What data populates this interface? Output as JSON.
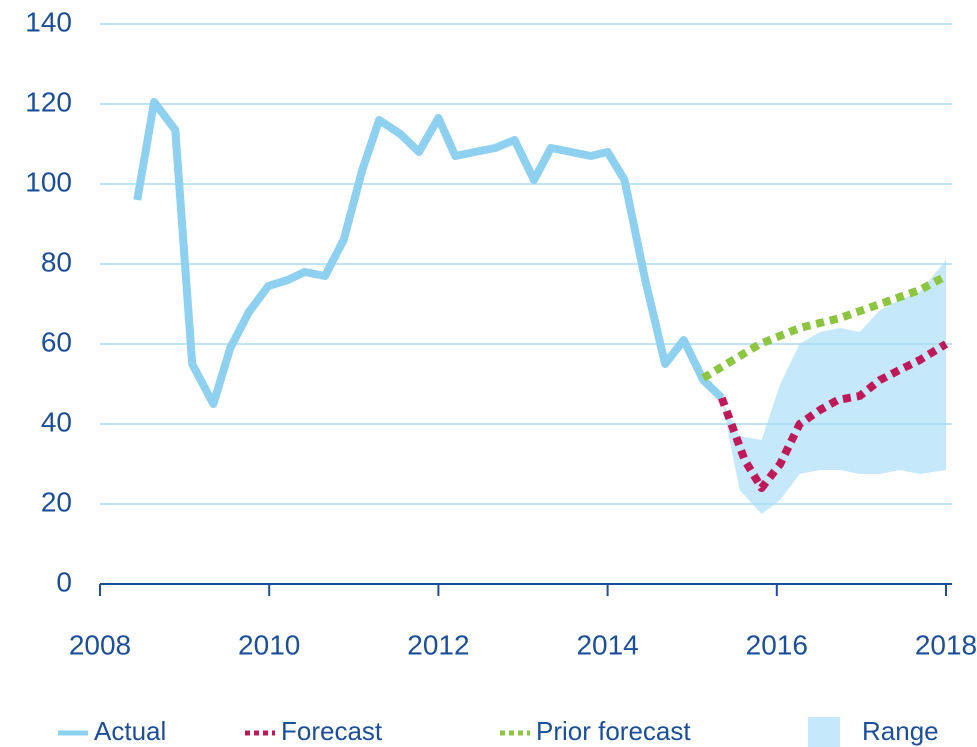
{
  "chart_data": {
    "type": "line",
    "xlim": [
      2008,
      2018
    ],
    "xticks": [
      2008,
      2010,
      2012,
      2014,
      2016,
      2018
    ],
    "ylim": [
      0,
      140
    ],
    "yticks": [
      0,
      20,
      40,
      60,
      80,
      100,
      120,
      140
    ],
    "grid": true,
    "legend": "bottom",
    "series": [
      {
        "name": "Actual",
        "color": "#8dd0f0",
        "style": "solid",
        "x": [
          2008.44,
          2008.64,
          2008.89,
          2009.09,
          2009.34,
          2009.54,
          2009.76,
          2009.99,
          2010.22,
          2010.42,
          2010.66,
          2010.88,
          2011.1,
          2011.3,
          2011.55,
          2011.77,
          2012.0,
          2012.2,
          2012.43,
          2012.67,
          2012.9,
          2013.13,
          2013.33,
          2013.57,
          2013.8,
          2014.0,
          2014.2,
          2014.45,
          2014.68,
          2014.9,
          2015.13,
          2015.35
        ],
        "values": [
          96,
          120.5,
          113.5,
          55,
          45,
          59,
          68,
          74.5,
          76,
          78,
          77,
          86,
          103.5,
          116,
          112.5,
          108,
          116.5,
          107,
          108,
          109,
          111,
          101,
          109,
          108,
          107,
          108,
          101,
          75.5,
          55,
          61,
          51,
          46.5
        ]
      },
      {
        "name": "Forecast",
        "color": "#c0195a",
        "style": "dotted",
        "x": [
          2015.35,
          2015.62,
          2015.82,
          2016.04,
          2016.27,
          2016.51,
          2016.72,
          2016.98,
          2017.22,
          2017.45,
          2017.69,
          2018.0
        ],
        "values": [
          46.5,
          31,
          24,
          30,
          40,
          43.5,
          46,
          47,
          51,
          53.5,
          56,
          60
        ]
      },
      {
        "name": "Prior forecast",
        "color": "#8cc63f",
        "style": "dotted",
        "x": [
          2015.13,
          2015.8,
          2016.27,
          2016.75,
          2017.22,
          2017.69,
          2018.0
        ],
        "values": [
          51.5,
          60,
          64,
          66.5,
          70,
          73.5,
          77
        ]
      },
      {
        "name": "Range",
        "color": "#c5e9fa",
        "style": "band",
        "x": [
          2015.35,
          2015.56,
          2015.82,
          2016.04,
          2016.27,
          2016.51,
          2016.75,
          2016.98,
          2017.22,
          2017.45,
          2017.69,
          2018.0
        ],
        "upper": [
          46,
          37,
          36,
          50,
          60,
          63,
          64,
          63,
          68.5,
          71,
          73,
          81
        ],
        "lower": [
          46,
          23.5,
          17.5,
          21,
          27.5,
          28.5,
          28.5,
          27.5,
          27.5,
          28.5,
          27.5,
          28.5
        ]
      }
    ]
  }
}
